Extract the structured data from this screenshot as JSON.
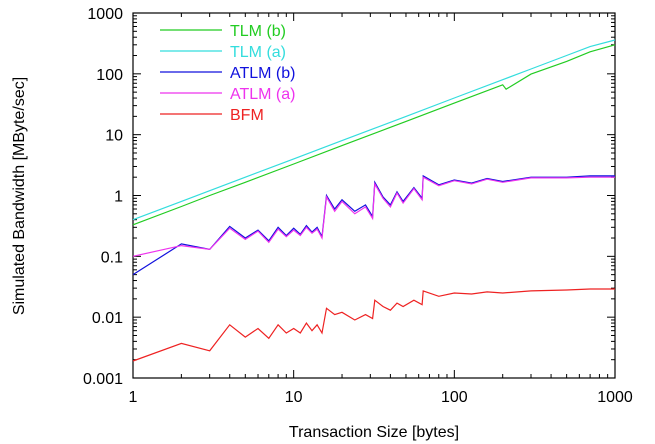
{
  "chart_data": {
    "type": "line",
    "xlabel": "Transaction Size [bytes]",
    "ylabel": "Simulated Bandwidth [MByte/sec]",
    "xscale": "log",
    "yscale": "log",
    "xlim": [
      1,
      1000
    ],
    "ylim": [
      0.001,
      1000
    ],
    "x_ticks": [
      1,
      10,
      100,
      1000
    ],
    "x_tick_labels": [
      "1",
      "10",
      "100",
      "1000"
    ],
    "y_ticks": [
      0.001,
      0.01,
      0.1,
      1,
      10,
      100,
      1000
    ],
    "y_tick_labels": [
      "0.001",
      "0.01",
      "0.1",
      "1",
      "10",
      "100",
      "1000"
    ],
    "grid": false,
    "legend_position": "top-left",
    "series": [
      {
        "name": "TLM (b)",
        "color": "#22cc22",
        "x": [
          1,
          2,
          3,
          5,
          10,
          20,
          50,
          100,
          200,
          210,
          300,
          500,
          700,
          1000
        ],
        "y": [
          0.33,
          0.66,
          1.0,
          1.65,
          3.3,
          6.6,
          16.5,
          33,
          66,
          56,
          99,
          160,
          230,
          300
        ]
      },
      {
        "name": "TLM (a)",
        "color": "#33dddd",
        "x": [
          1,
          2,
          3,
          5,
          10,
          20,
          50,
          100,
          200,
          300,
          500,
          700,
          1000
        ],
        "y": [
          0.4,
          0.8,
          1.2,
          2.0,
          4.0,
          8.0,
          20,
          40,
          80,
          120,
          200,
          280,
          360
        ]
      },
      {
        "name": "ATLM (b)",
        "color": "#1111dd",
        "x": [
          1,
          2,
          3,
          4,
          5,
          6,
          7,
          8,
          9,
          10,
          11,
          12,
          13,
          14,
          15,
          16,
          18,
          20,
          24,
          28,
          31,
          32,
          36,
          40,
          44,
          48,
          56,
          63,
          64,
          80,
          100,
          128,
          160,
          200,
          300,
          500,
          700,
          1000
        ],
        "y": [
          0.05,
          0.16,
          0.13,
          0.31,
          0.2,
          0.27,
          0.18,
          0.3,
          0.22,
          0.29,
          0.23,
          0.32,
          0.25,
          0.3,
          0.21,
          1.0,
          0.6,
          0.85,
          0.55,
          0.7,
          0.45,
          1.65,
          0.95,
          0.7,
          1.15,
          0.8,
          1.35,
          0.9,
          2.1,
          1.5,
          1.8,
          1.6,
          1.9,
          1.7,
          2.0,
          2.0,
          2.1,
          2.1
        ]
      },
      {
        "name": "ATLM (a)",
        "color": "#ee33ee",
        "x": [
          1,
          2,
          3,
          4,
          5,
          6,
          7,
          8,
          9,
          10,
          11,
          12,
          13,
          14,
          15,
          16,
          18,
          20,
          24,
          28,
          31,
          32,
          36,
          40,
          44,
          48,
          56,
          63,
          64,
          80,
          100,
          128,
          160,
          200,
          300,
          500,
          700,
          1000
        ],
        "y": [
          0.1,
          0.15,
          0.13,
          0.29,
          0.19,
          0.26,
          0.17,
          0.28,
          0.21,
          0.27,
          0.22,
          0.3,
          0.24,
          0.28,
          0.2,
          0.95,
          0.55,
          0.8,
          0.5,
          0.65,
          0.42,
          1.55,
          0.9,
          0.65,
          1.1,
          0.75,
          1.3,
          0.85,
          2.0,
          1.45,
          1.75,
          1.55,
          1.85,
          1.65,
          1.95,
          1.95,
          2.0,
          2.0
        ]
      },
      {
        "name": "BFM",
        "color": "#ee2222",
        "x": [
          1,
          2,
          3,
          4,
          5,
          6,
          7,
          8,
          9,
          10,
          11,
          12,
          13,
          14,
          15,
          16,
          18,
          20,
          24,
          28,
          31,
          32,
          36,
          40,
          44,
          48,
          56,
          63,
          64,
          80,
          100,
          128,
          160,
          200,
          300,
          500,
          700,
          1000
        ],
        "y": [
          0.0019,
          0.0037,
          0.0028,
          0.0075,
          0.0047,
          0.0065,
          0.0045,
          0.0075,
          0.0055,
          0.0065,
          0.0055,
          0.008,
          0.006,
          0.0075,
          0.0055,
          0.014,
          0.011,
          0.012,
          0.009,
          0.011,
          0.0095,
          0.019,
          0.015,
          0.013,
          0.017,
          0.015,
          0.019,
          0.016,
          0.027,
          0.022,
          0.025,
          0.024,
          0.026,
          0.025,
          0.027,
          0.028,
          0.029,
          0.029
        ]
      }
    ]
  }
}
